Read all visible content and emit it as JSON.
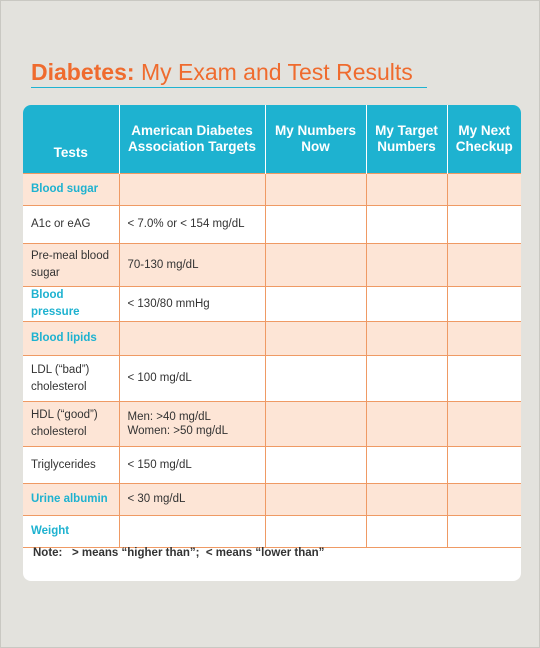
{
  "header": {
    "title_bold": "Diabetes:",
    "title_rest": "My Exam and Test Results"
  },
  "table": {
    "headers": [
      "Tests",
      "American Diabetes Association Targets",
      "My Numbers Now",
      "My Target Numbers",
      "My Next Checkup"
    ],
    "rows": [
      [
        "Blood sugar",
        ""
      ],
      [
        "A1c or eAG",
        "< 7.0% or < 154 mg/dL"
      ],
      [
        "Pre-meal blood sugar",
        "70-130 mg/dL"
      ],
      [
        "Blood pressure",
        "< 130/80 mmHg"
      ],
      [
        "Blood lipids",
        ""
      ],
      [
        "LDL (“bad”) cholesterol",
        "< 100 mg/dL"
      ],
      [
        "HDL (“good”) cholesterol",
        [
          "Men: >40 mg/dL",
          "Women: >50 mg/dL"
        ]
      ],
      [
        "Triglycerides",
        "< 150 mg/dL"
      ],
      [
        "Urine albumin",
        "< 30 mg/dL"
      ],
      [
        "Weight",
        ""
      ]
    ],
    "note_label": "Note:",
    "note": "> means “higher than”;  < means “lower than”"
  }
}
